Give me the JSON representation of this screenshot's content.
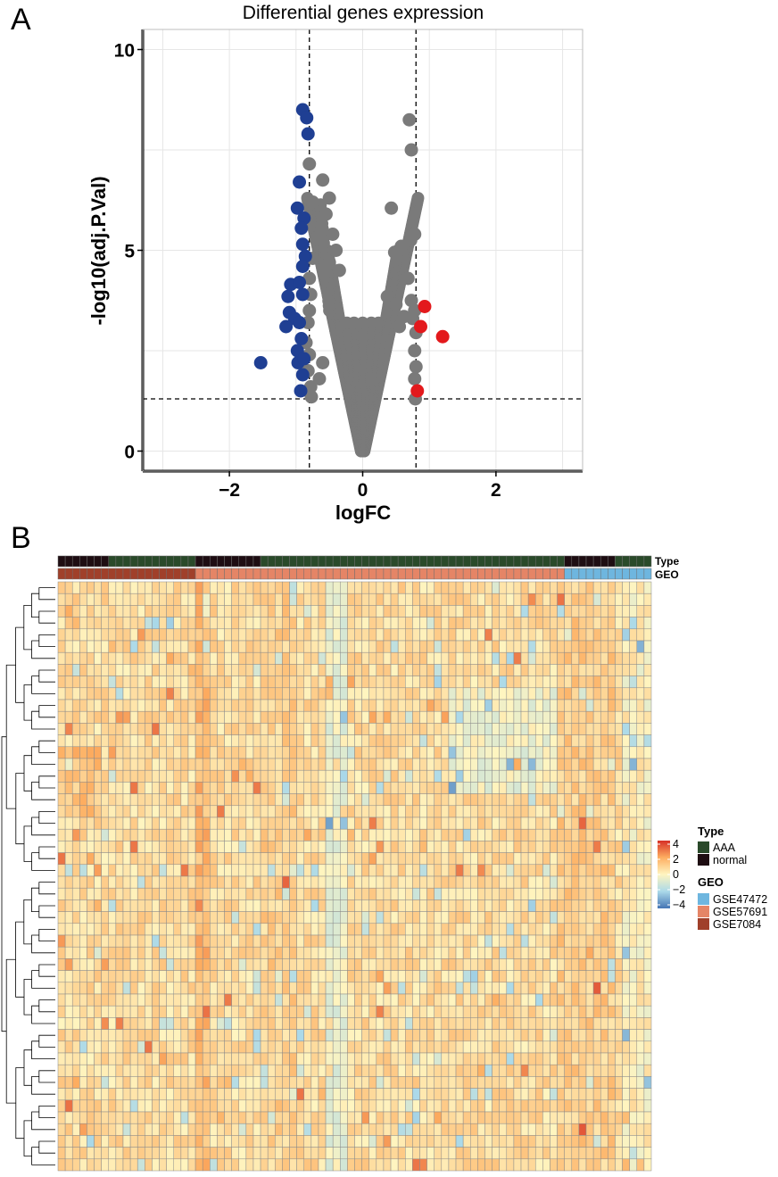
{
  "panels": {
    "a": "A",
    "b": "B"
  },
  "chart_data": [
    {
      "type": "scatter",
      "title": "Differential genes expression",
      "xlabel": "logFC",
      "ylabel": "-log10(adj.P.Val)",
      "xlim": [
        -3.3,
        3.3
      ],
      "ylim": [
        -0.5,
        10.5
      ],
      "x_ticks": [
        -2,
        0,
        2
      ],
      "y_ticks": [
        0,
        5,
        10
      ],
      "x_tick_labels": [
        "−2",
        "0",
        "2"
      ],
      "y_tick_labels": [
        "0",
        "5",
        "10"
      ],
      "logfc_threshold": [
        -0.8,
        0.8
      ],
      "pvalue_threshold": 1.3,
      "grid": true,
      "colors": {
        "down": "#1f3f93",
        "not": "#7a7a7a",
        "up": "#e3191c"
      },
      "series": [
        {
          "name": "down",
          "points": [
            [
              -0.9,
              8.5
            ],
            [
              -0.84,
              8.3
            ],
            [
              -0.82,
              7.9
            ],
            [
              -0.95,
              6.7
            ],
            [
              -0.98,
              6.05
            ],
            [
              -0.88,
              5.8
            ],
            [
              -0.92,
              5.55
            ],
            [
              -0.9,
              5.15
            ],
            [
              -0.86,
              4.85
            ],
            [
              -0.9,
              4.6
            ],
            [
              -1.08,
              4.15
            ],
            [
              -0.95,
              4.2
            ],
            [
              -1.12,
              3.85
            ],
            [
              -0.9,
              3.9
            ],
            [
              -1.1,
              3.45
            ],
            [
              -1.02,
              3.3
            ],
            [
              -1.15,
              3.1
            ],
            [
              -0.95,
              3.2
            ],
            [
              -0.92,
              2.8
            ],
            [
              -0.98,
              2.5
            ],
            [
              -1.53,
              2.2
            ],
            [
              -0.97,
              2.2
            ],
            [
              -0.88,
              2.3
            ],
            [
              -0.9,
              1.9
            ],
            [
              -0.93,
              1.5
            ]
          ]
        },
        {
          "name": "up",
          "points": [
            [
              0.93,
              3.6
            ],
            [
              0.87,
              3.1
            ],
            [
              1.2,
              2.85
            ],
            [
              0.82,
              1.5
            ]
          ]
        },
        {
          "name": "not",
          "points": [
            [
              -0.8,
              7.15
            ],
            [
              -0.6,
              6.75
            ],
            [
              -0.5,
              6.3
            ],
            [
              -0.75,
              6.2
            ],
            [
              -0.55,
              5.9
            ],
            [
              -0.62,
              5.5
            ],
            [
              -0.45,
              5.4
            ],
            [
              -0.7,
              5.3
            ],
            [
              -0.4,
              5.0
            ],
            [
              -0.75,
              4.8
            ],
            [
              -0.5,
              4.7
            ],
            [
              -0.35,
              4.5
            ],
            [
              -0.8,
              4.3
            ],
            [
              -0.78,
              3.9
            ],
            [
              -0.8,
              3.5
            ],
            [
              -0.82,
              3.2
            ],
            [
              -0.85,
              2.7
            ],
            [
              -0.8,
              2.4
            ],
            [
              -0.82,
              2.0
            ],
            [
              -0.78,
              1.6
            ],
            [
              -0.77,
              1.35
            ],
            [
              -0.6,
              2.2
            ],
            [
              -0.65,
              1.8
            ],
            [
              0.7,
              8.25
            ],
            [
              0.73,
              7.5
            ],
            [
              0.78,
              5.4
            ],
            [
              0.72,
              5.25
            ],
            [
              0.43,
              6.05
            ],
            [
              0.58,
              5.1
            ],
            [
              0.48,
              4.95
            ],
            [
              0.68,
              4.3
            ],
            [
              0.37,
              3.85
            ],
            [
              0.73,
              3.75
            ],
            [
              0.78,
              3.5
            ],
            [
              0.75,
              3.3
            ],
            [
              0.8,
              2.95
            ],
            [
              0.62,
              3.35
            ],
            [
              0.5,
              3.65
            ],
            [
              0.55,
              3.1
            ],
            [
              0.78,
              2.5
            ],
            [
              0.8,
              2.1
            ],
            [
              0.78,
              1.8
            ],
            [
              0.79,
              1.3
            ]
          ]
        }
      ]
    },
    {
      "type": "heatmap",
      "annotation_rows": [
        "Type",
        "GEO"
      ],
      "color_scale_labels": [
        "4",
        "2",
        "0",
        "−2",
        "−4"
      ],
      "color_scale_values": [
        4,
        2,
        0,
        -2,
        -4
      ],
      "color_scale_colors": [
        "#d73027",
        "#fdae61",
        "#fff5c0",
        "#abd9e9",
        "#4575b4"
      ],
      "n_rows": 50,
      "n_cols": 82,
      "type_segments": [
        {
          "label": "normal",
          "count": 7
        },
        {
          "label": "AAA",
          "count": 12
        },
        {
          "label": "normal",
          "count": 9
        },
        {
          "label": "AAA",
          "count": 42
        },
        {
          "label": "normal",
          "count": 7
        },
        {
          "label": "AAA",
          "count": 5
        }
      ],
      "geo_segments": [
        {
          "label": "GSE7084",
          "count": 19
        },
        {
          "label": "GSE57691",
          "count": 51
        },
        {
          "label": "GSE47472",
          "count": 12
        }
      ],
      "legend": {
        "type_title": "Type",
        "type_items": [
          {
            "label": "AAA",
            "color": "#2a4a2a"
          },
          {
            "label": "normal",
            "color": "#1e0d12"
          }
        ],
        "geo_title": "GEO",
        "geo_items": [
          {
            "label": "GSE47472",
            "color": "#6eb6df"
          },
          {
            "label": "GSE57691",
            "color": "#e58566"
          },
          {
            "label": "GSE7084",
            "color": "#a0402a"
          }
        ]
      }
    }
  ]
}
